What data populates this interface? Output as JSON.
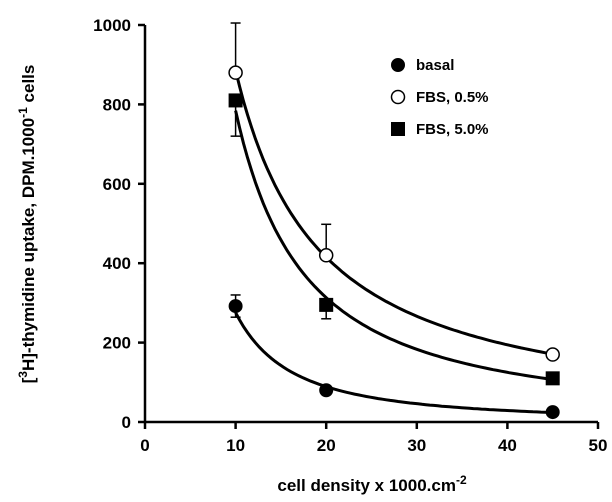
{
  "chart_data": {
    "type": "scatter",
    "xlabel": "cell density  x 1000.cm",
    "xlabel_sup": "-2",
    "ylabel_pre": "[",
    "ylabel_sup": "3",
    "ylabel_mid": "H]-thymidine uptake, DPM.1000",
    "ylabel_sup2": "-1",
    "ylabel_post": " cells",
    "xlim": [
      0,
      50
    ],
    "ylim": [
      0,
      1000
    ],
    "xticks": [
      "0",
      "10",
      "20",
      "30",
      "40",
      "50"
    ],
    "yticks": [
      "0",
      "200",
      "400",
      "600",
      "800",
      "1000"
    ],
    "grid": false,
    "legend_position": "top-right",
    "series": [
      {
        "name": "basal",
        "marker": "filled-circle",
        "x": [
          10,
          20,
          45
        ],
        "y": [
          292,
          80,
          25
        ],
        "err_up": [
          28,
          0,
          0
        ],
        "err_down": [
          28,
          0,
          0
        ]
      },
      {
        "name": "FBS, 0.5%",
        "marker": "open-circle",
        "x": [
          10,
          20,
          45
        ],
        "y": [
          880,
          420,
          170
        ],
        "err_up": [
          125,
          78,
          0
        ],
        "err_down": [
          0,
          0,
          0
        ]
      },
      {
        "name": "FBS, 5.0%",
        "marker": "filled-square",
        "x": [
          10,
          20,
          45
        ],
        "y": [
          810,
          295,
          110
        ],
        "err_up": [
          0,
          0,
          0
        ],
        "err_down": [
          90,
          35,
          0
        ]
      }
    ]
  }
}
